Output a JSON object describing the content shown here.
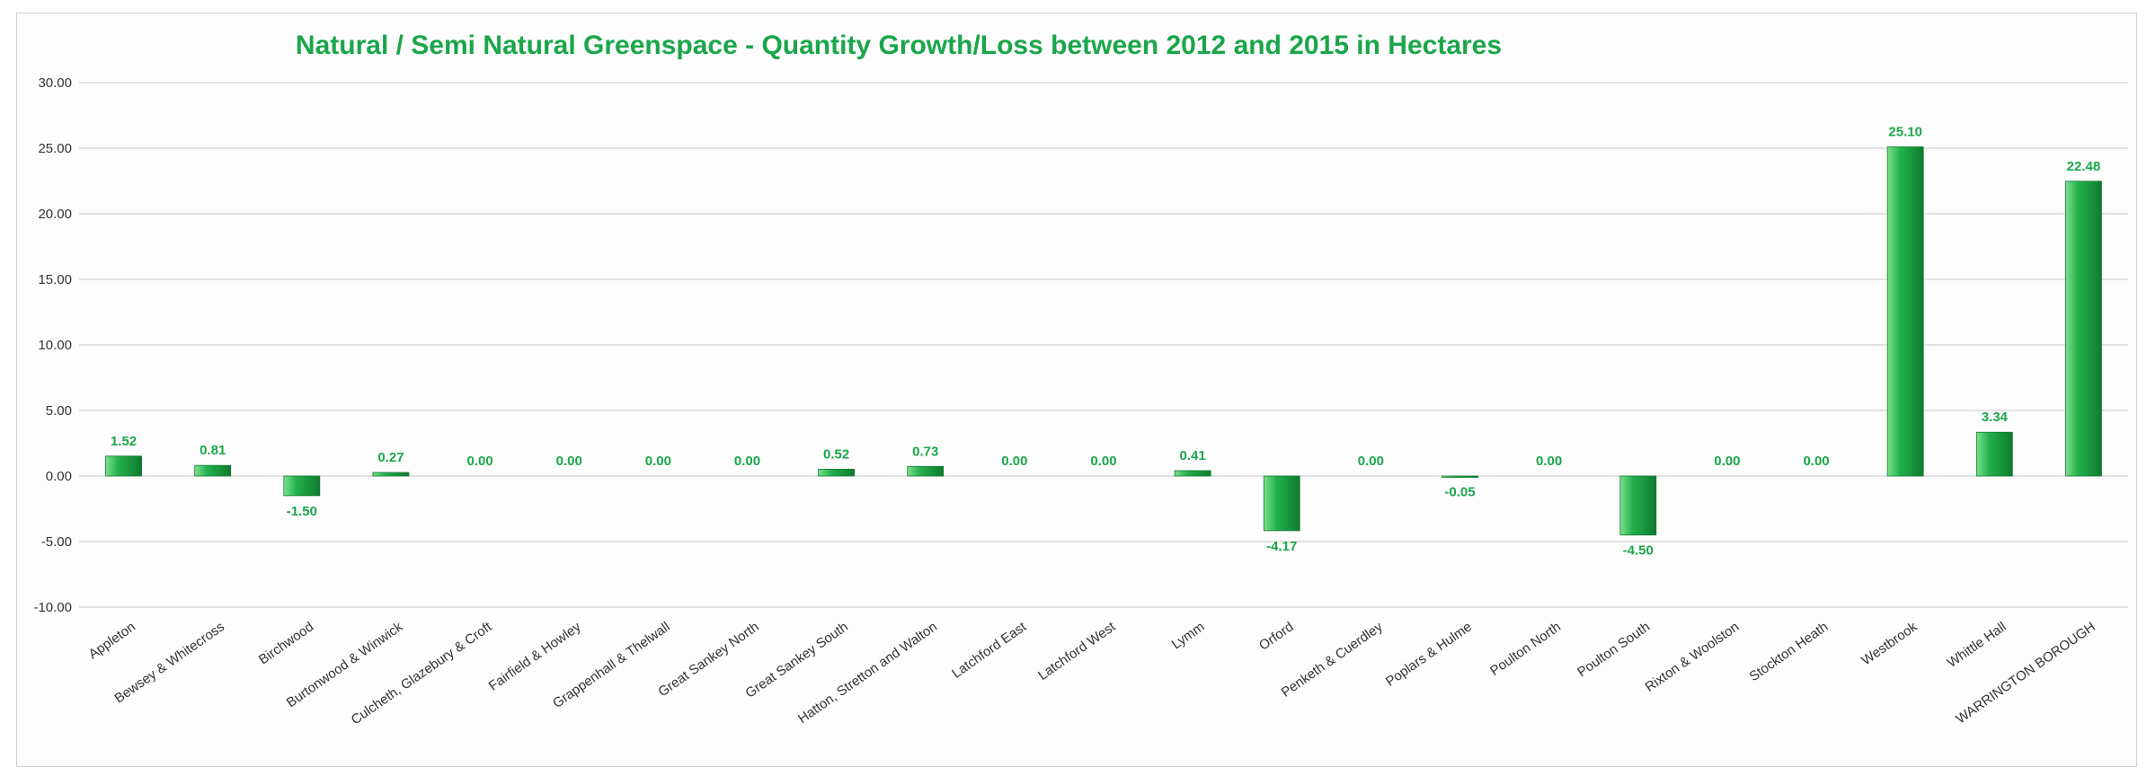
{
  "chart_data": {
    "type": "bar",
    "title": "Natural / Semi Natural Greenspace - Quantity Growth/Loss between 2012 and 2015 in Hectares",
    "categories": [
      "Appleton",
      "Bewsey & Whitecross",
      "Birchwood",
      "Burtonwood & Winwick",
      "Culcheth, Glazebury & Croft",
      "Fairfield & Howley",
      "Grappenhall & Thelwall",
      "Great Sankey North",
      "Great Sankey South",
      "Hatton, Stretton and Walton",
      "Latchford East",
      "Latchford West",
      "Lymm",
      "Orford",
      "Penketh & Cuerdley",
      "Poplars & Hulme",
      "Poulton North",
      "Poulton South",
      "Rixton & Woolston",
      "Stockton Heath",
      "Westbrook",
      "Whittle Hall",
      "WARRINGTON BOROUGH"
    ],
    "values": [
      1.52,
      0.81,
      -1.5,
      0.27,
      0.0,
      0.0,
      0.0,
      0.0,
      0.52,
      0.73,
      0.0,
      0.0,
      0.41,
      -4.17,
      0.0,
      -0.05,
      0.0,
      -4.5,
      0.0,
      0.0,
      25.1,
      3.34,
      22.48
    ],
    "data_labels": [
      "1.52",
      "0.81",
      "-1.50",
      "0.27",
      "0.00",
      "0.00",
      "0.00",
      "0.00",
      "0.52",
      "0.73",
      "0.00",
      "0.00",
      "0.41",
      "-4.17",
      "0.00",
      "-0.05",
      "0.00",
      "-4.50",
      "0.00",
      "0.00",
      "25.10",
      "3.34",
      "22.48"
    ],
    "yticks": [
      "30.00",
      "25.00",
      "20.00",
      "15.00",
      "10.00",
      "5.00",
      "0.00",
      "-5.00",
      "-10.00"
    ],
    "ylim": [
      -10,
      30
    ],
    "grid": true,
    "legend": "none",
    "colors": {
      "bar": "#22b14c",
      "bar_light": "#7ee08f",
      "bar_dark": "#0f7a2e",
      "title": "#1aa64a",
      "label": "#1aa64a",
      "grid": "#c8c8c8"
    }
  }
}
